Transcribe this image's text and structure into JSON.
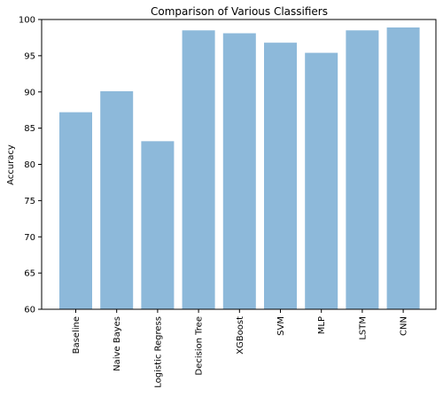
{
  "colors": {
    "bar": "#8db9da",
    "axis": "#000000",
    "background": "#ffffff"
  },
  "chart_data": {
    "type": "bar",
    "title": "Comparison of Various Classifiers",
    "xlabel": "",
    "ylabel": "Accuracy",
    "categories": [
      "Baseline",
      "Naive Bayes",
      "Logistic Regress",
      "Decision Tree",
      "XGBoost",
      "SVM",
      "MLP",
      "LSTM",
      "CNN"
    ],
    "values": [
      87.2,
      90.1,
      83.2,
      98.5,
      98.1,
      96.8,
      95.4,
      98.5,
      98.9
    ],
    "ylim": [
      60,
      100
    ],
    "yticks": [
      60,
      65,
      70,
      75,
      80,
      85,
      90,
      95,
      100
    ],
    "grid": false,
    "legend": "none"
  }
}
